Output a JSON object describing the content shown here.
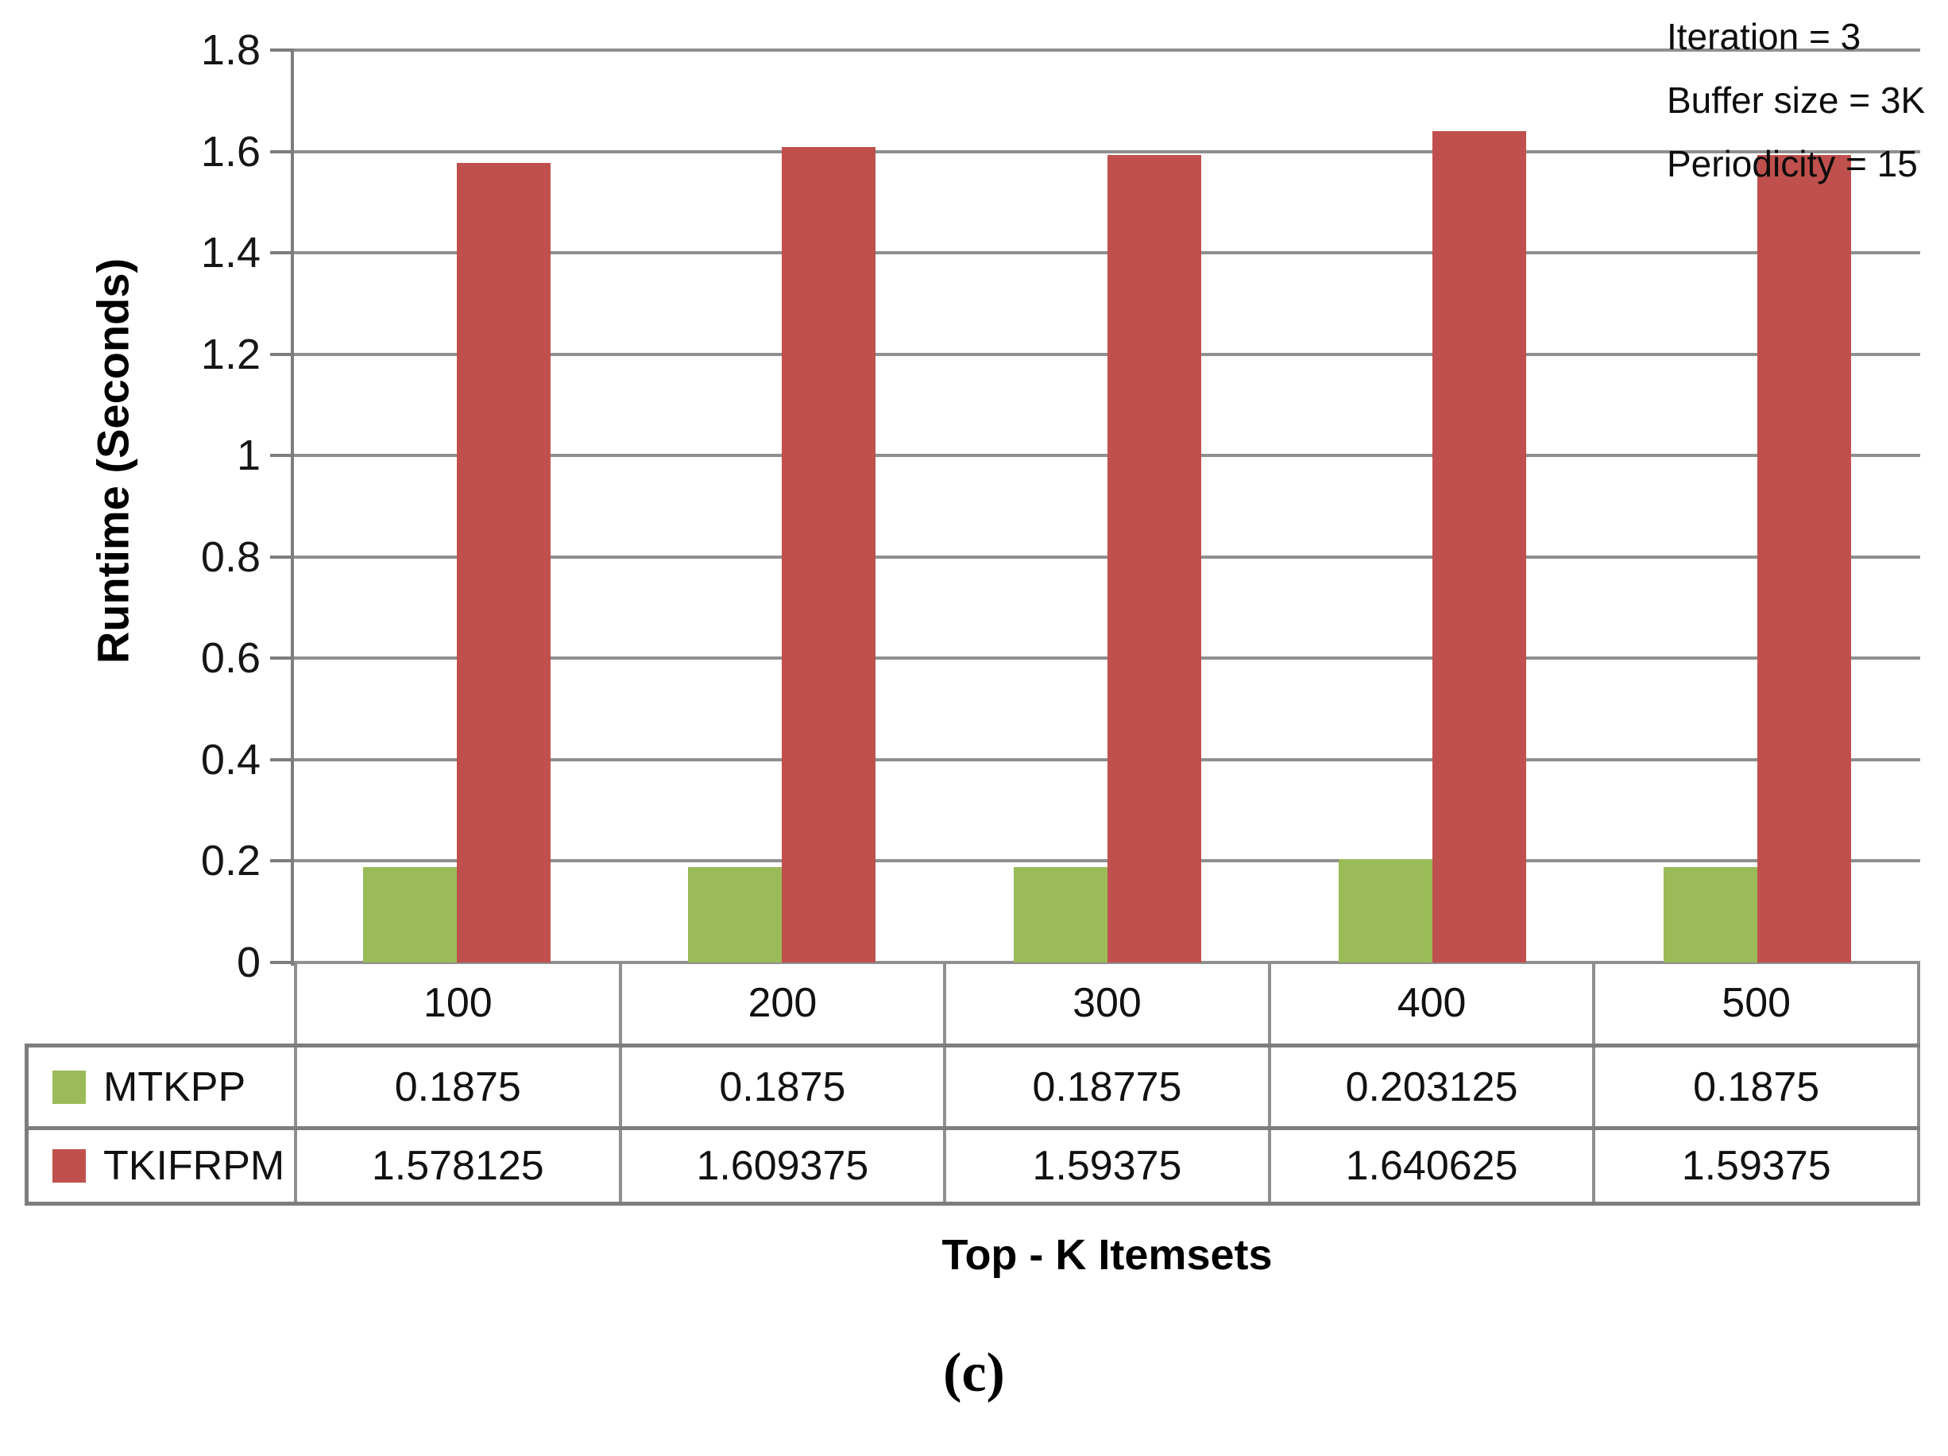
{
  "chart_data": {
    "type": "bar",
    "categories": [
      "100",
      "200",
      "300",
      "400",
      "500"
    ],
    "series": [
      {
        "name": "MTKPP",
        "color": "#9bbb59",
        "values": [
          0.1875,
          0.1875,
          0.18775,
          0.203125,
          0.1875
        ]
      },
      {
        "name": "TKIFRPM",
        "color": "#c0504d",
        "values": [
          1.578125,
          1.609375,
          1.59375,
          1.640625,
          1.59375
        ]
      }
    ],
    "xlabel": "Top - K Itemsets",
    "ylabel": "Runtime (Seconds)",
    "ylim": [
      0,
      1.8
    ],
    "ytick_step": 0.2,
    "yticks": [
      "1.8",
      "1.6",
      "1.4",
      "1.2",
      "1",
      "0.8",
      "0.6",
      "0.4",
      "0.2",
      "0"
    ],
    "grid": true,
    "legend_position": "data-table-left",
    "annotation_lines": [
      "Iteration = 3",
      "Buffer size = 3K",
      "Periodicity = 15"
    ],
    "gridline_color": "#8f8f8f",
    "axis_color": "#7d7d7d"
  },
  "caption": "(c)"
}
